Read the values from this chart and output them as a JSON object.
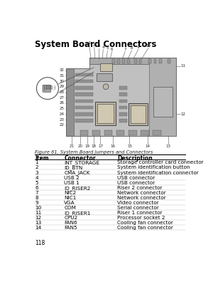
{
  "page_title": "System Board Connectors",
  "figure_caption": "Figure 61. System Board Jumpers and Connectors",
  "page_number": "118",
  "bg_color": "#ffffff",
  "table_headers": [
    "Item",
    "Connector",
    "Description"
  ],
  "table_rows": [
    [
      "1",
      "INT_STORAGE",
      "Storage controller card connector"
    ],
    [
      "2",
      "ID_BTN",
      "System identification button"
    ],
    [
      "3",
      "CMA_JACK",
      "System identification connector"
    ],
    [
      "4",
      "USB 2",
      "USB connector"
    ],
    [
      "5",
      "USB 1",
      "USB connector"
    ],
    [
      "6",
      "IO_RISER2",
      "Riser 2 connector"
    ],
    [
      "7",
      "NIC2",
      "Network connector"
    ],
    [
      "8",
      "NIC1",
      "Network connector"
    ],
    [
      "9",
      "VGA",
      "Video connector"
    ],
    [
      "10",
      "COM",
      "Serial connector"
    ],
    [
      "11",
      "IO_RISER1",
      "Riser 1 connector"
    ],
    [
      "12",
      "CPU2",
      "Processor socket 2"
    ],
    [
      "13",
      "FAN6",
      "Cooling fan connector"
    ],
    [
      "14",
      "FAN5",
      "Cooling fan connector"
    ]
  ],
  "title_fontsize": 8.5,
  "caption_fontsize": 4.8,
  "table_fontsize": 5.2,
  "header_fontsize": 5.5,
  "page_num_fontsize": 5.5,
  "header_line_color": "#000000",
  "row_line_color": "#bbbbbb",
  "board_color": "#c0c0c0",
  "board_edge": "#555555",
  "board_dark": "#909090",
  "board_top_strip": "#a8a8a8",
  "cpu_color": "#d8d0b0",
  "dimm_color": "#888888",
  "right_section_color": "#b0b0b0",
  "label_color": "#222222",
  "line_color": "#555555",
  "inset_bg": "#ffffff",
  "inset_detail": "#aaaaaa"
}
